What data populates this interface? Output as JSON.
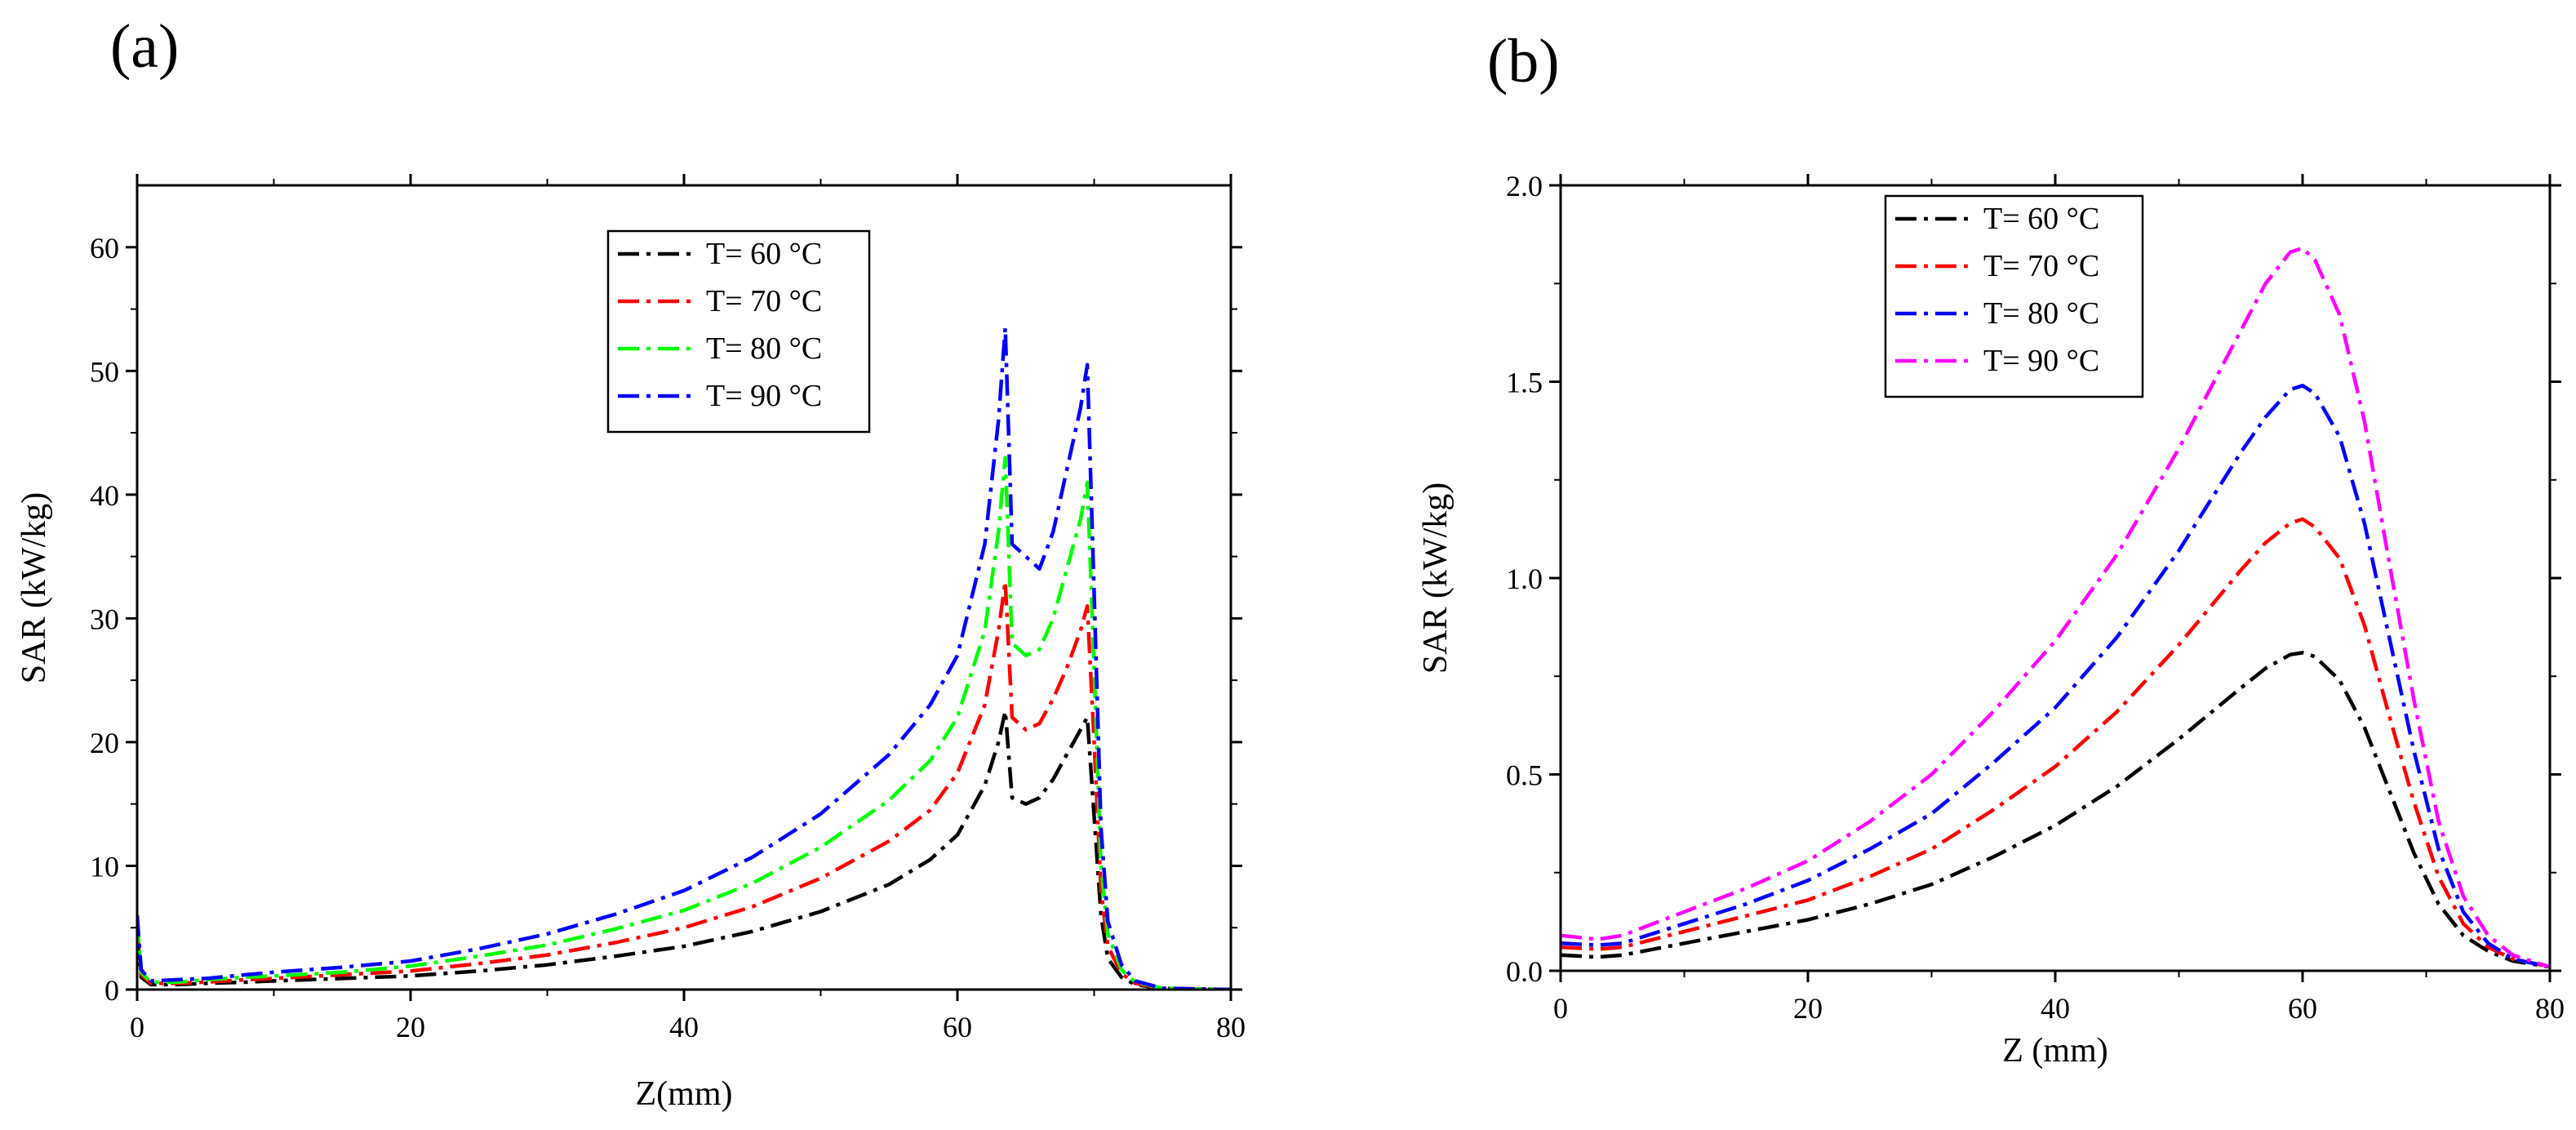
{
  "chart_data": [
    {
      "type": "line",
      "panel_label": "(a)",
      "xlabel": "Z(mm)",
      "ylabel": "SAR (kW/kg)",
      "xlim": [
        0,
        80
      ],
      "ylim": [
        0,
        65
      ],
      "xticks": [
        0,
        20,
        40,
        60,
        80
      ],
      "yticks": [
        0,
        10,
        20,
        30,
        40,
        50,
        60
      ],
      "grid": false,
      "legend_position": "top-center",
      "line_style": "dash-dot",
      "series": [
        {
          "name": "T= 60 °C",
          "color": "#000000",
          "x": [
            0,
            0.3,
            1,
            3,
            5,
            8,
            10,
            15,
            20,
            25,
            30,
            35,
            40,
            45,
            50,
            55,
            58,
            60,
            62,
            63,
            63.5,
            64,
            65,
            66,
            67,
            68,
            69,
            69.5,
            70,
            70.5,
            71,
            72,
            73,
            75,
            80
          ],
          "y": [
            4.5,
            1.0,
            0.4,
            0.4,
            0.5,
            0.6,
            0.7,
            0.9,
            1.1,
            1.5,
            2.0,
            2.7,
            3.5,
            4.7,
            6.3,
            8.5,
            10.5,
            12.5,
            16.5,
            20,
            22.5,
            15.5,
            15,
            15.5,
            17,
            19,
            21,
            22,
            14,
            6,
            2.5,
            1.0,
            0.4,
            0.1,
            0
          ]
        },
        {
          "name": "T= 70 °C",
          "color": "#ff0000",
          "x": [
            0,
            0.3,
            1,
            3,
            5,
            8,
            10,
            15,
            20,
            25,
            30,
            35,
            40,
            45,
            50,
            55,
            58,
            60,
            62,
            63,
            63.5,
            64,
            65,
            66,
            67,
            68,
            69,
            69.5,
            70,
            70.5,
            71,
            72,
            73,
            75,
            80
          ],
          "y": [
            5,
            1.2,
            0.5,
            0.5,
            0.6,
            0.8,
            0.9,
            1.2,
            1.5,
            2.1,
            2.8,
            3.8,
            5.0,
            6.7,
            9.0,
            12.0,
            14.5,
            17.5,
            23,
            29,
            33,
            22,
            21,
            21.5,
            23.5,
            26,
            29,
            31,
            20,
            8,
            3.5,
            1.3,
            0.5,
            0.1,
            0
          ]
        },
        {
          "name": "T= 80 °C",
          "color": "#00ff00",
          "x": [
            0,
            0.3,
            1,
            3,
            5,
            8,
            10,
            15,
            20,
            25,
            30,
            35,
            40,
            45,
            50,
            55,
            58,
            60,
            62,
            63,
            63.5,
            64,
            65,
            66,
            67,
            68,
            69,
            69.5,
            70,
            70.5,
            71,
            72,
            73,
            75,
            80
          ],
          "y": [
            5.5,
            1.4,
            0.6,
            0.6,
            0.8,
            1.0,
            1.1,
            1.4,
            1.9,
            2.7,
            3.6,
            4.9,
            6.4,
            8.6,
            11.5,
            15.3,
            18.5,
            22,
            29,
            37,
            43,
            28,
            27,
            27.5,
            30,
            34,
            38,
            41,
            26,
            10,
            4.5,
            1.6,
            0.6,
            0.1,
            0
          ]
        },
        {
          "name": "T= 90 °C",
          "color": "#0000ff",
          "x": [
            0,
            0.3,
            1,
            3,
            5,
            8,
            10,
            15,
            20,
            25,
            30,
            35,
            40,
            45,
            50,
            55,
            58,
            60,
            62,
            63,
            63.5,
            64,
            65,
            66,
            67,
            68,
            69,
            69.5,
            70,
            70.5,
            71,
            72,
            73,
            75,
            80
          ],
          "y": [
            6,
            1.6,
            0.7,
            0.8,
            0.9,
            1.2,
            1.4,
            1.8,
            2.3,
            3.3,
            4.5,
            6.1,
            8.0,
            10.7,
            14.2,
            19.0,
            23,
            27,
            36,
            46,
            53.5,
            36,
            35,
            34,
            37,
            42,
            47,
            50.5,
            32,
            13,
            5.5,
            2.0,
            0.7,
            0.1,
            0
          ]
        }
      ]
    },
    {
      "type": "line",
      "panel_label": "(b)",
      "xlabel": "Z (mm)",
      "ylabel": "SAR (kW/kg)",
      "xlim": [
        0,
        80
      ],
      "ylim": [
        0,
        2.0
      ],
      "xticks": [
        0,
        20,
        40,
        60,
        80
      ],
      "yticks": [
        0.0,
        0.5,
        1.0,
        1.5,
        2.0
      ],
      "ytick_labels": [
        "0.0",
        "0.5",
        "1.0",
        "1.5",
        "2.0"
      ],
      "grid": false,
      "legend_position": "top-left",
      "line_style": "dash-dot",
      "series": [
        {
          "name": "T= 60 °C",
          "color": "#000000",
          "x": [
            0,
            3,
            5,
            10,
            15,
            20,
            25,
            30,
            35,
            40,
            45,
            50,
            55,
            57,
            59,
            60,
            61,
            63,
            65,
            67,
            69,
            71,
            73,
            75,
            77,
            80
          ],
          "y": [
            0.04,
            0.035,
            0.04,
            0.07,
            0.1,
            0.13,
            0.17,
            0.22,
            0.29,
            0.37,
            0.47,
            0.59,
            0.72,
            0.77,
            0.805,
            0.81,
            0.8,
            0.74,
            0.62,
            0.46,
            0.3,
            0.17,
            0.09,
            0.05,
            0.025,
            0.01
          ]
        },
        {
          "name": "T= 70 °C",
          "color": "#ff0000",
          "x": [
            0,
            3,
            5,
            10,
            15,
            20,
            25,
            30,
            35,
            40,
            45,
            50,
            55,
            57,
            59,
            60,
            61,
            63,
            65,
            67,
            69,
            71,
            73,
            75,
            77,
            80
          ],
          "y": [
            0.06,
            0.055,
            0.06,
            0.1,
            0.14,
            0.18,
            0.24,
            0.31,
            0.41,
            0.52,
            0.66,
            0.83,
            1.02,
            1.09,
            1.14,
            1.15,
            1.13,
            1.05,
            0.88,
            0.65,
            0.43,
            0.24,
            0.12,
            0.06,
            0.03,
            0.01
          ]
        },
        {
          "name": "T= 80 °C",
          "color": "#0000ff",
          "x": [
            0,
            3,
            5,
            10,
            15,
            20,
            25,
            30,
            35,
            40,
            45,
            50,
            55,
            57,
            59,
            60,
            61,
            63,
            65,
            67,
            69,
            71,
            73,
            75,
            77,
            80
          ],
          "y": [
            0.07,
            0.065,
            0.07,
            0.12,
            0.17,
            0.23,
            0.31,
            0.4,
            0.53,
            0.67,
            0.85,
            1.07,
            1.32,
            1.41,
            1.48,
            1.49,
            1.47,
            1.36,
            1.14,
            0.85,
            0.56,
            0.31,
            0.15,
            0.07,
            0.03,
            0.01
          ]
        },
        {
          "name": "T= 90 °C",
          "color": "#ff00ff",
          "x": [
            0,
            3,
            5,
            10,
            15,
            20,
            25,
            30,
            35,
            40,
            45,
            50,
            55,
            57,
            59,
            60,
            61,
            63,
            65,
            67,
            69,
            71,
            73,
            75,
            77,
            80
          ],
          "y": [
            0.09,
            0.08,
            0.09,
            0.15,
            0.21,
            0.28,
            0.38,
            0.5,
            0.66,
            0.84,
            1.06,
            1.33,
            1.63,
            1.75,
            1.83,
            1.84,
            1.81,
            1.67,
            1.4,
            1.04,
            0.69,
            0.38,
            0.19,
            0.09,
            0.04,
            0.01
          ]
        }
      ]
    }
  ]
}
